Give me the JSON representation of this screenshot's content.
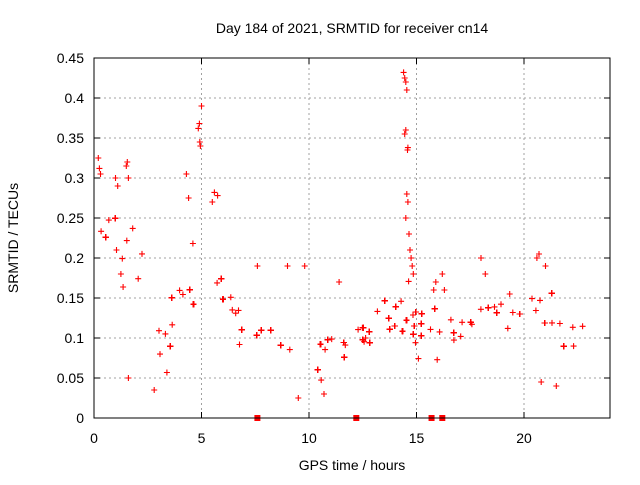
{
  "chart_data": {
    "type": "scatter",
    "title": "Day 184 of 2021, SRMTID for receiver cn14",
    "xlabel": "GPS time / hours",
    "ylabel": "SRMTID / TECUs",
    "xlim": [
      0,
      24
    ],
    "ylim": [
      0,
      0.45
    ],
    "xticks": [
      0,
      5,
      10,
      15,
      20
    ],
    "xtick_labels": [
      "0",
      "5",
      "10",
      "15",
      "20"
    ],
    "yticks": [
      0,
      0.05,
      0.1,
      0.15,
      0.2,
      0.25,
      0.3,
      0.35,
      0.4,
      0.45
    ],
    "ytick_labels": [
      "0",
      "0.05",
      "0.1",
      "0.15",
      "0.2",
      "0.25",
      "0.3",
      "0.35",
      "0.4",
      "0.45"
    ],
    "grid": true,
    "marker": "+",
    "color": "#ff0000",
    "series": [
      {
        "name": "SRMTID",
        "trend": [
          [
            0.0,
            0.17
          ],
          [
            0.5,
            0.22
          ],
          [
            1.0,
            0.21
          ],
          [
            1.5,
            0.19
          ],
          [
            2.0,
            0.16
          ],
          [
            2.5,
            0.16
          ],
          [
            3.0,
            0.12
          ],
          [
            3.5,
            0.1
          ],
          [
            4.0,
            0.16
          ],
          [
            4.5,
            0.18
          ],
          [
            5.0,
            0.19
          ],
          [
            5.5,
            0.2
          ],
          [
            6.0,
            0.16
          ],
          [
            6.5,
            0.11
          ],
          [
            7.0,
            0.1
          ],
          [
            7.5,
            0.11
          ],
          [
            8.0,
            0.1
          ],
          [
            8.5,
            0.09
          ],
          [
            9.0,
            0.1
          ],
          [
            9.5,
            0.09
          ],
          [
            10.0,
            0.08
          ],
          [
            10.5,
            0.07
          ],
          [
            11.0,
            0.075
          ],
          [
            11.5,
            0.08
          ],
          [
            12.0,
            0.085
          ],
          [
            12.5,
            0.09
          ],
          [
            13.0,
            0.1
          ],
          [
            13.5,
            0.11
          ],
          [
            14.0,
            0.12
          ],
          [
            14.5,
            0.13
          ],
          [
            15.0,
            0.11
          ],
          [
            15.5,
            0.09
          ],
          [
            16.0,
            0.09
          ],
          [
            16.5,
            0.1
          ],
          [
            17.0,
            0.11
          ],
          [
            17.5,
            0.12
          ],
          [
            18.0,
            0.14
          ],
          [
            18.5,
            0.13
          ],
          [
            19.0,
            0.12
          ],
          [
            19.5,
            0.13
          ],
          [
            20.0,
            0.14
          ],
          [
            20.5,
            0.12
          ],
          [
            21.0,
            0.11
          ],
          [
            21.5,
            0.1
          ],
          [
            22.0,
            0.1
          ],
          [
            22.5,
            0.11
          ],
          [
            22.8,
            0.11
          ]
        ],
        "spread": [
          [
            0.0,
            0.05
          ],
          [
            2.0,
            0.05
          ],
          [
            3.0,
            0.04
          ],
          [
            4.0,
            0.05
          ],
          [
            6.0,
            0.04
          ],
          [
            7.0,
            0.03
          ],
          [
            10.0,
            0.03
          ],
          [
            12.0,
            0.03
          ],
          [
            14.0,
            0.04
          ],
          [
            16.0,
            0.035
          ],
          [
            18.0,
            0.035
          ],
          [
            20.0,
            0.035
          ],
          [
            22.0,
            0.035
          ],
          [
            22.8,
            0.035
          ]
        ],
        "outlier_points": [
          [
            0.2,
            0.325
          ],
          [
            0.25,
            0.312
          ],
          [
            0.3,
            0.305
          ],
          [
            1.5,
            0.315
          ],
          [
            1.55,
            0.32
          ],
          [
            1.6,
            0.3
          ],
          [
            1.0,
            0.3
          ],
          [
            1.1,
            0.29
          ],
          [
            4.3,
            0.305
          ],
          [
            4.4,
            0.275
          ],
          [
            4.85,
            0.362
          ],
          [
            4.9,
            0.368
          ],
          [
            4.92,
            0.345
          ],
          [
            4.95,
            0.34
          ],
          [
            5.0,
            0.39
          ],
          [
            5.6,
            0.282
          ],
          [
            5.75,
            0.278
          ],
          [
            5.5,
            0.27
          ],
          [
            14.4,
            0.432
          ],
          [
            14.45,
            0.425
          ],
          [
            14.5,
            0.42
          ],
          [
            14.55,
            0.41
          ],
          [
            14.5,
            0.36
          ],
          [
            14.6,
            0.338
          ],
          [
            14.58,
            0.335
          ],
          [
            14.45,
            0.355
          ],
          [
            14.55,
            0.28
          ],
          [
            14.6,
            0.27
          ],
          [
            14.5,
            0.25
          ],
          [
            14.65,
            0.23
          ],
          [
            14.7,
            0.21
          ],
          [
            14.8,
            0.19
          ],
          [
            14.85,
            0.18
          ],
          [
            14.75,
            0.2
          ],
          [
            15.9,
            0.17
          ],
          [
            15.8,
            0.16
          ],
          [
            16.2,
            0.18
          ],
          [
            16.3,
            0.16
          ],
          [
            20.6,
            0.2
          ],
          [
            20.7,
            0.205
          ],
          [
            21.0,
            0.19
          ],
          [
            18.0,
            0.2
          ],
          [
            18.2,
            0.18
          ],
          [
            7.6,
            0.19
          ],
          [
            9.0,
            0.19
          ],
          [
            9.8,
            0.19
          ],
          [
            11.4,
            0.17
          ],
          [
            10.7,
            0.03
          ],
          [
            9.5,
            0.025
          ],
          [
            2.8,
            0.035
          ],
          [
            1.6,
            0.05
          ],
          [
            20.8,
            0.045
          ],
          [
            21.5,
            0.04
          ]
        ]
      }
    ],
    "bottom_markers": [
      7.6,
      12.2,
      15.7,
      16.2
    ]
  }
}
